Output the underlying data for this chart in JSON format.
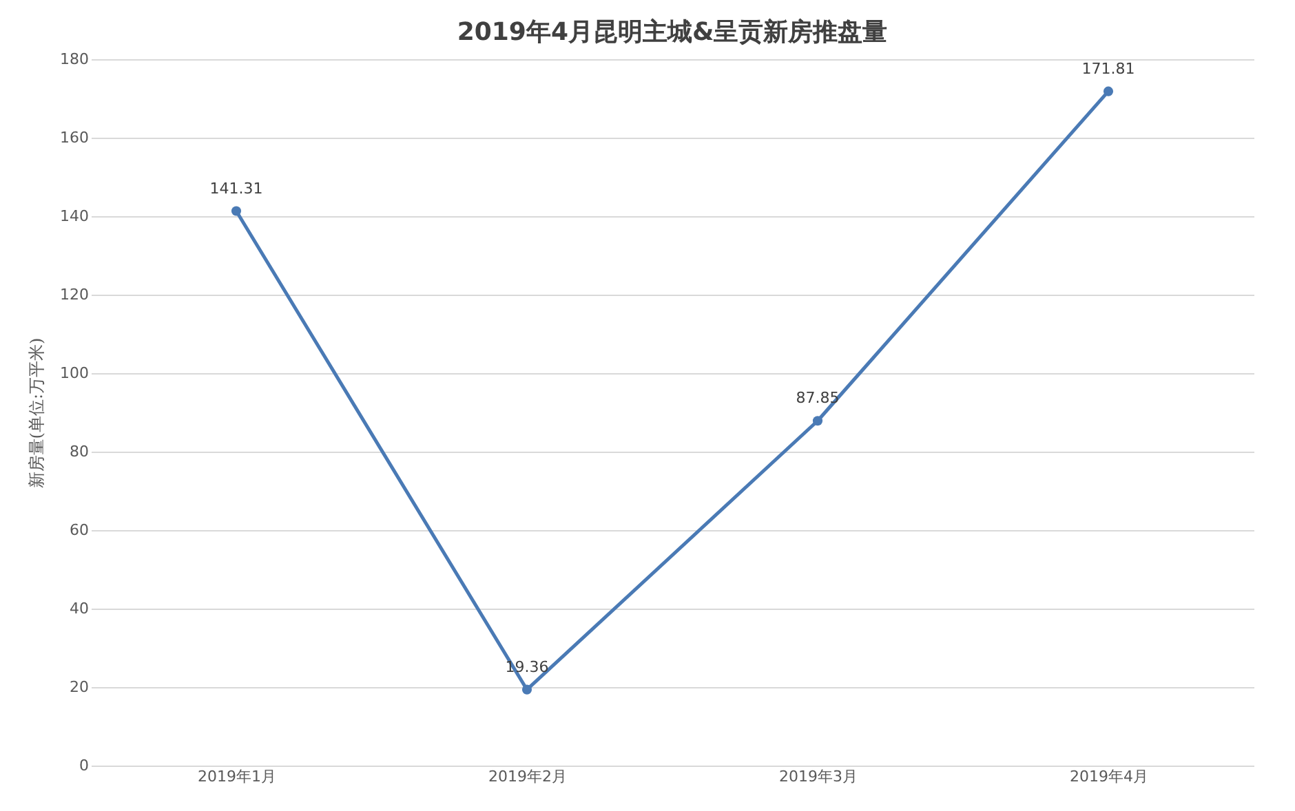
{
  "chart_data": {
    "type": "line",
    "title": "2019年4月昆明主城&呈贡新房推盘量",
    "ylabel": "新房量(单位:万平米)",
    "categories": [
      "2019年1月",
      "2019年2月",
      "2019年3月",
      "2019年4月"
    ],
    "series": [
      {
        "color": "#4a7ab5",
        "values": [
          141.31,
          19.36,
          87.85,
          171.81
        ]
      }
    ],
    "ylim": [
      0,
      180
    ],
    "yticks": [
      0,
      20,
      40,
      60,
      80,
      100,
      120,
      140,
      160,
      180
    ],
    "grid": "y",
    "marker": "circle",
    "line_style": "solid",
    "data_labels": true,
    "legend": false
  }
}
